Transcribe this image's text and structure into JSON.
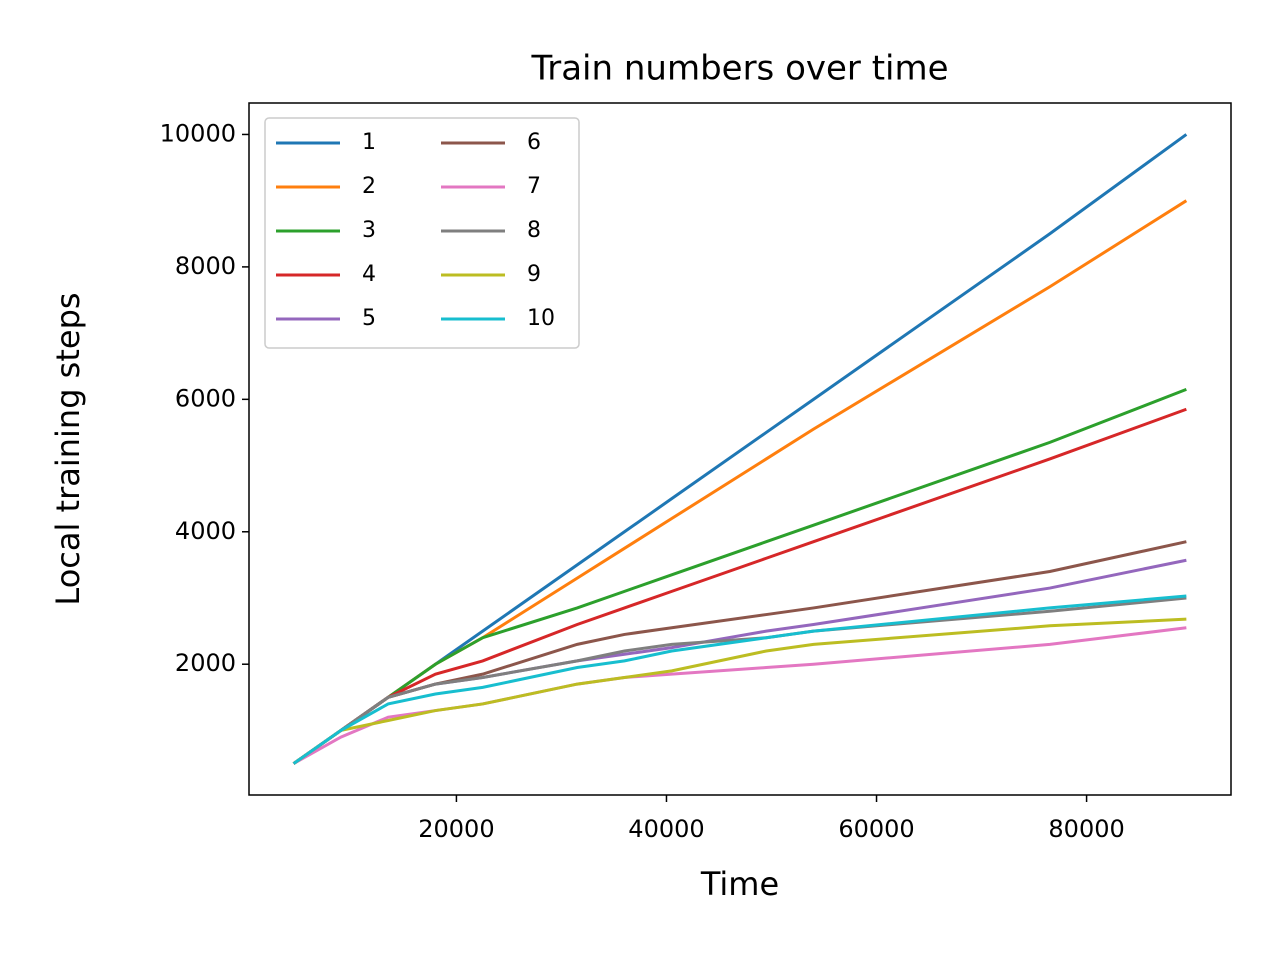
{
  "chart_data": {
    "type": "line",
    "title": "Train numbers over time",
    "x_label": "Time",
    "y_label": "Local training steps",
    "x": [
      4500,
      9000,
      13500,
      18000,
      22500,
      31500,
      36000,
      40500,
      49500,
      54000,
      76500,
      89500
    ],
    "series": [
      {
        "name": "1",
        "color": "#1f77b4",
        "values": [
          500,
          1000,
          1500,
          2000,
          2500,
          3500,
          4000,
          4500,
          5500,
          6000,
          8500,
          10000
        ]
      },
      {
        "name": "2",
        "color": "#ff7f0e",
        "values": [
          500,
          1000,
          1500,
          2000,
          2400,
          3300,
          3750,
          4200,
          5100,
          5550,
          7700,
          9000
        ]
      },
      {
        "name": "3",
        "color": "#2ca02c",
        "values": [
          500,
          1000,
          1500,
          2000,
          2400,
          2850,
          3100,
          3350,
          3850,
          4100,
          5350,
          6150
        ]
      },
      {
        "name": "4",
        "color": "#d62728",
        "values": [
          500,
          1000,
          1500,
          1850,
          2050,
          2600,
          2850,
          3100,
          3600,
          3850,
          5100,
          5850
        ]
      },
      {
        "name": "5",
        "color": "#9467bd",
        "values": [
          500,
          1000,
          1500,
          1700,
          1800,
          2050,
          2150,
          2250,
          2500,
          2600,
          3150,
          3570
        ]
      },
      {
        "name": "6",
        "color": "#8c564b",
        "values": [
          500,
          1000,
          1500,
          1700,
          1850,
          2300,
          2450,
          2550,
          2750,
          2850,
          3400,
          3850
        ]
      },
      {
        "name": "7",
        "color": "#e377c2",
        "values": [
          500,
          900,
          1200,
          1300,
          1400,
          1700,
          1800,
          1850,
          1950,
          2000,
          2300,
          2550
        ]
      },
      {
        "name": "8",
        "color": "#7f7f7f",
        "values": [
          500,
          1000,
          1500,
          1700,
          1800,
          2050,
          2200,
          2300,
          2400,
          2500,
          2800,
          3000
        ]
      },
      {
        "name": "9",
        "color": "#bcbd22",
        "values": [
          500,
          1000,
          1150,
          1300,
          1400,
          1700,
          1800,
          1900,
          2200,
          2300,
          2580,
          2680
        ]
      },
      {
        "name": "10",
        "color": "#17becf",
        "values": [
          500,
          1000,
          1400,
          1550,
          1650,
          1950,
          2050,
          2200,
          2400,
          2500,
          2850,
          3030
        ]
      }
    ],
    "xlim": [
      250,
      93750
    ],
    "ylim": [
      25,
      10475
    ],
    "xticks": [
      20000,
      40000,
      60000,
      80000
    ],
    "yticks": [
      2000,
      4000,
      6000,
      8000,
      10000
    ],
    "legend": "upper left",
    "legend_columns": 2
  }
}
